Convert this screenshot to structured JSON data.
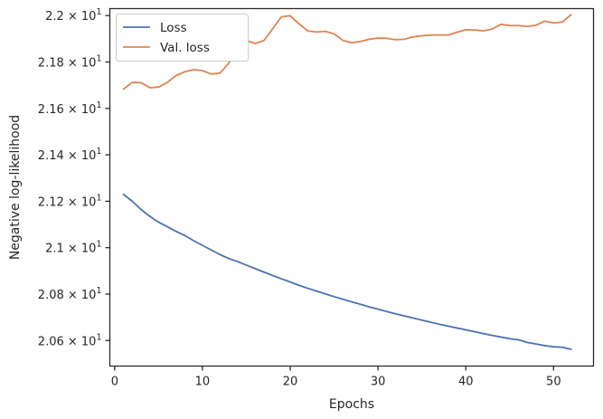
{
  "chart_data": {
    "type": "line",
    "xlabel": "Epochs",
    "ylabel": "Negative log-likelihood",
    "xlim": [
      -0.55,
      54.55
    ],
    "ylim": [
      20.49,
      22.03
    ],
    "xticks": [
      0,
      10,
      20,
      30,
      40,
      50
    ],
    "yticks": [
      {
        "value": 20.6,
        "mantissa": "2.06",
        "base": "10",
        "exp": "1"
      },
      {
        "value": 20.8,
        "mantissa": "2.08",
        "base": "10",
        "exp": "1"
      },
      {
        "value": 21.0,
        "mantissa": "2.1",
        "base": "10",
        "exp": "1"
      },
      {
        "value": 21.2,
        "mantissa": "2.12",
        "base": "10",
        "exp": "1"
      },
      {
        "value": 21.4,
        "mantissa": "2.14",
        "base": "10",
        "exp": "1"
      },
      {
        "value": 21.6,
        "mantissa": "2.16",
        "base": "10",
        "exp": "1"
      },
      {
        "value": 21.8,
        "mantissa": "2.18",
        "base": "10",
        "exp": "1"
      },
      {
        "value": 22.0,
        "mantissa": "2.2",
        "base": "10",
        "exp": "1"
      }
    ],
    "y_tick_times": "×",
    "grid": false,
    "legend_position": "top-left",
    "x": [
      1,
      2,
      3,
      4,
      5,
      6,
      7,
      8,
      9,
      10,
      11,
      12,
      13,
      14,
      15,
      16,
      17,
      18,
      19,
      20,
      21,
      22,
      23,
      24,
      25,
      26,
      27,
      28,
      29,
      30,
      31,
      32,
      33,
      34,
      35,
      36,
      37,
      38,
      39,
      40,
      41,
      42,
      43,
      44,
      45,
      46,
      47,
      48,
      49,
      50,
      51,
      52
    ],
    "series": [
      {
        "name": "Loss",
        "color": "#4c72b0",
        "values": [
          21.23,
          21.2,
          21.165,
          21.135,
          21.11,
          21.09,
          21.07,
          21.052,
          21.03,
          21.01,
          20.99,
          20.97,
          20.953,
          20.94,
          20.925,
          20.91,
          20.895,
          20.88,
          20.866,
          20.852,
          20.838,
          20.825,
          20.813,
          20.801,
          20.789,
          20.778,
          20.767,
          20.756,
          20.745,
          20.735,
          20.725,
          20.715,
          20.706,
          20.697,
          20.688,
          20.679,
          20.67,
          20.662,
          20.654,
          20.646,
          20.638,
          20.63,
          20.622,
          20.615,
          20.608,
          20.603,
          20.592,
          20.585,
          20.578,
          20.573,
          20.571,
          20.562
        ]
      },
      {
        "name": "Val. loss",
        "color": "#dd8452",
        "values": [
          21.683,
          21.712,
          21.711,
          21.689,
          21.692,
          21.712,
          21.742,
          21.758,
          21.767,
          21.763,
          21.748,
          21.752,
          21.795,
          21.864,
          21.893,
          21.88,
          21.892,
          21.943,
          21.995,
          21.999,
          21.964,
          21.934,
          21.929,
          21.932,
          21.921,
          21.893,
          21.883,
          21.888,
          21.898,
          21.903,
          21.902,
          21.896,
          21.898,
          21.908,
          21.913,
          21.916,
          21.916,
          21.916,
          21.928,
          21.939,
          21.938,
          21.934,
          21.942,
          21.962,
          21.957,
          21.957,
          21.953,
          21.958,
          21.976,
          21.968,
          21.972,
          22.004
        ]
      }
    ]
  }
}
